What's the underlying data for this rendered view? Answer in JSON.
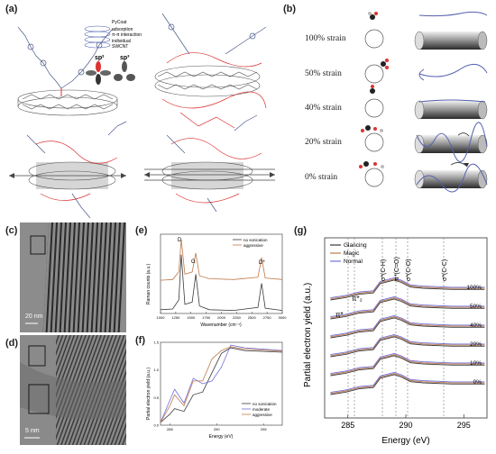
{
  "panels": {
    "a": "(a)",
    "b": "(b)",
    "c": "(c)",
    "d": "(d)",
    "e": "(e)",
    "f": "(f)",
    "g": "(g)"
  },
  "panel_a": {
    "legend": [
      "PyCoat",
      "adsorption",
      "π-π interaction",
      "individual",
      "SWCNT"
    ],
    "orbitals": [
      "sp²",
      "sp³"
    ]
  },
  "panel_b": {
    "strains": [
      "100% strain",
      "50% strain",
      "40% strain",
      "20% strain",
      "0% strain"
    ]
  },
  "panel_c": {
    "scale": "20 nm"
  },
  "panel_d": {
    "scale": "5 nm"
  },
  "chart_data": [
    {
      "panel": "e",
      "type": "line",
      "xlabel": "Wavenumber (cm⁻¹)",
      "ylabel": "Raman counts (a.u.)",
      "xlim": [
        1000,
        3000
      ],
      "xticks": [
        "1000",
        "1250",
        "1500",
        "1750",
        "2000",
        "2250",
        "2500",
        "2750",
        "3000"
      ],
      "annotations": [
        "D",
        "G",
        "D*"
      ],
      "series": [
        {
          "name": "no sonication",
          "color": "#3a3a3a",
          "x": [
            1000,
            1200,
            1300,
            1340,
            1400,
            1520,
            1580,
            1640,
            1800,
            2200,
            2600,
            2660,
            2720,
            3000
          ],
          "y": [
            0.05,
            0.06,
            0.18,
            0.78,
            0.12,
            0.15,
            0.52,
            0.1,
            0.05,
            0.04,
            0.08,
            0.4,
            0.07,
            0.04
          ]
        },
        {
          "name": "aggressive",
          "color": "#c0784a",
          "x": [
            1000,
            1200,
            1300,
            1340,
            1400,
            1520,
            1580,
            1640,
            1800,
            2200,
            2600,
            2660,
            2720,
            3000
          ],
          "y": [
            0.44,
            0.45,
            0.55,
            0.98,
            0.52,
            0.55,
            0.8,
            0.5,
            0.46,
            0.45,
            0.48,
            0.74,
            0.47,
            0.45
          ]
        }
      ]
    },
    {
      "panel": "f",
      "type": "line",
      "xlabel": "Energy (eV)",
      "ylabel": "Partial electron yield (a.u.)",
      "xlim": [
        284,
        297
      ],
      "ylim": [
        0,
        1.5
      ],
      "xticks": [
        "285",
        "290",
        "295"
      ],
      "yticks": [
        "0.0",
        "0.5",
        "1.0",
        "1.5"
      ],
      "series": [
        {
          "name": "no sonication",
          "color": "#3a3a3a",
          "x": [
            284,
            285,
            285.5,
            286.5,
            287.5,
            288.5,
            289.5,
            290.5,
            291.5,
            293,
            297
          ],
          "y": [
            0.05,
            0.2,
            0.3,
            0.25,
            0.55,
            0.6,
            0.95,
            1.3,
            1.4,
            1.35,
            1.32
          ]
        },
        {
          "name": "moderate",
          "color": "#6f6fd8",
          "x": [
            284,
            285,
            285.5,
            286.5,
            287.5,
            288.5,
            289.5,
            290.5,
            291.5,
            293,
            297
          ],
          "y": [
            0.05,
            0.45,
            0.65,
            0.4,
            0.85,
            0.75,
            0.8,
            1.05,
            1.45,
            1.4,
            1.35
          ]
        },
        {
          "name": "aggressive",
          "color": "#c0784a",
          "x": [
            284,
            285,
            285.5,
            286.5,
            287.5,
            288.5,
            289.5,
            290.5,
            291.5,
            293,
            297
          ],
          "y": [
            0.05,
            0.35,
            0.55,
            0.35,
            0.8,
            0.8,
            1.2,
            1.35,
            1.42,
            1.38,
            1.34
          ]
        }
      ]
    },
    {
      "panel": "g",
      "type": "line",
      "xlabel": "Energy (eV)",
      "ylabel": "Partial electron yield (a.u.)",
      "xlim": [
        283,
        297
      ],
      "xticks": [
        "285",
        "290",
        "295"
      ],
      "annotations": [
        "π*",
        "π*₂",
        "σ*(C-H)",
        "π*(C=O)",
        "σ*(C-O)",
        "σ*(C-C)"
      ],
      "legend": [
        "Glancing",
        "Magic",
        "Normal"
      ],
      "legend_colors": [
        "#3a3a3a",
        "#c0784a",
        "#6f6fd8"
      ],
      "offset_labels": [
        "100%",
        "50%",
        "40%",
        "20%",
        "10%",
        "0%"
      ]
    }
  ]
}
